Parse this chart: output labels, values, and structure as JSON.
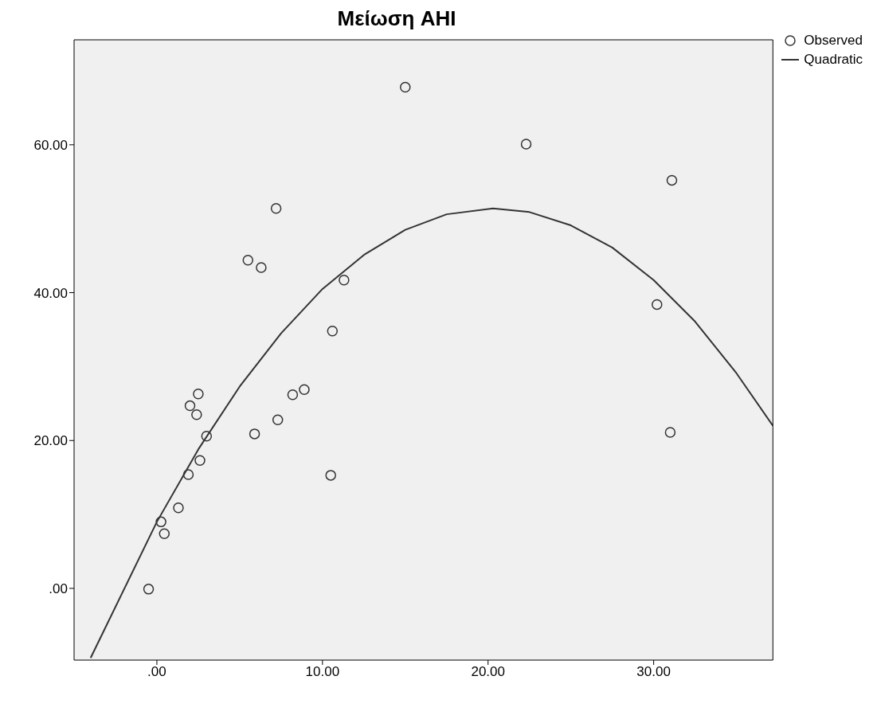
{
  "chart_data": {
    "type": "scatter",
    "title": "Μείωση AHI",
    "legend": "top right",
    "grid": false,
    "xlim": [
      -5,
      37.2
    ],
    "ylim": [
      -9.7,
      74.2
    ],
    "xticks": [
      {
        "value": 0,
        "label": ".00"
      },
      {
        "value": 10,
        "label": "10.00"
      },
      {
        "value": 20,
        "label": "20.00"
      },
      {
        "value": 30,
        "label": "30.00"
      }
    ],
    "yticks": [
      {
        "value": 0,
        "label": ".00"
      },
      {
        "value": 20,
        "label": "20.00"
      },
      {
        "value": 40,
        "label": "40.00"
      },
      {
        "value": 60,
        "label": "60.00"
      }
    ],
    "series": [
      {
        "name": "Observed",
        "marker": "circle",
        "color": "#333333",
        "x": [
          -0.5,
          0.25,
          0.45,
          1.3,
          1.9,
          2.0,
          2.4,
          2.5,
          2.6,
          3.0,
          5.5,
          5.9,
          6.3,
          7.2,
          7.3,
          8.2,
          8.9,
          10.5,
          10.6,
          11.3,
          15.0,
          22.3,
          30.2,
          31.0,
          31.1
        ],
        "values": [
          -0.1,
          9.0,
          7.4,
          10.9,
          15.4,
          24.7,
          23.5,
          26.3,
          17.3,
          20.6,
          44.4,
          20.9,
          43.4,
          51.4,
          22.8,
          26.2,
          26.9,
          15.3,
          34.8,
          41.7,
          67.8,
          60.1,
          38.4,
          21.1,
          55.2
        ]
      },
      {
        "name": "Quadratic",
        "type": "line",
        "marker": "none",
        "line_style": "solid",
        "color": "#333333",
        "x": [
          -4,
          0,
          2.5,
          5,
          7.5,
          10,
          12.5,
          15,
          17.5,
          20.3,
          22.5,
          25,
          27.5,
          30,
          32.5,
          35,
          37.2
        ],
        "values": [
          -9.4,
          9.0,
          18.8,
          27.3,
          34.5,
          40.5,
          45.1,
          48.5,
          50.6,
          51.4,
          50.9,
          49.1,
          46.1,
          41.7,
          36.1,
          29.1,
          22.0
        ]
      }
    ]
  }
}
